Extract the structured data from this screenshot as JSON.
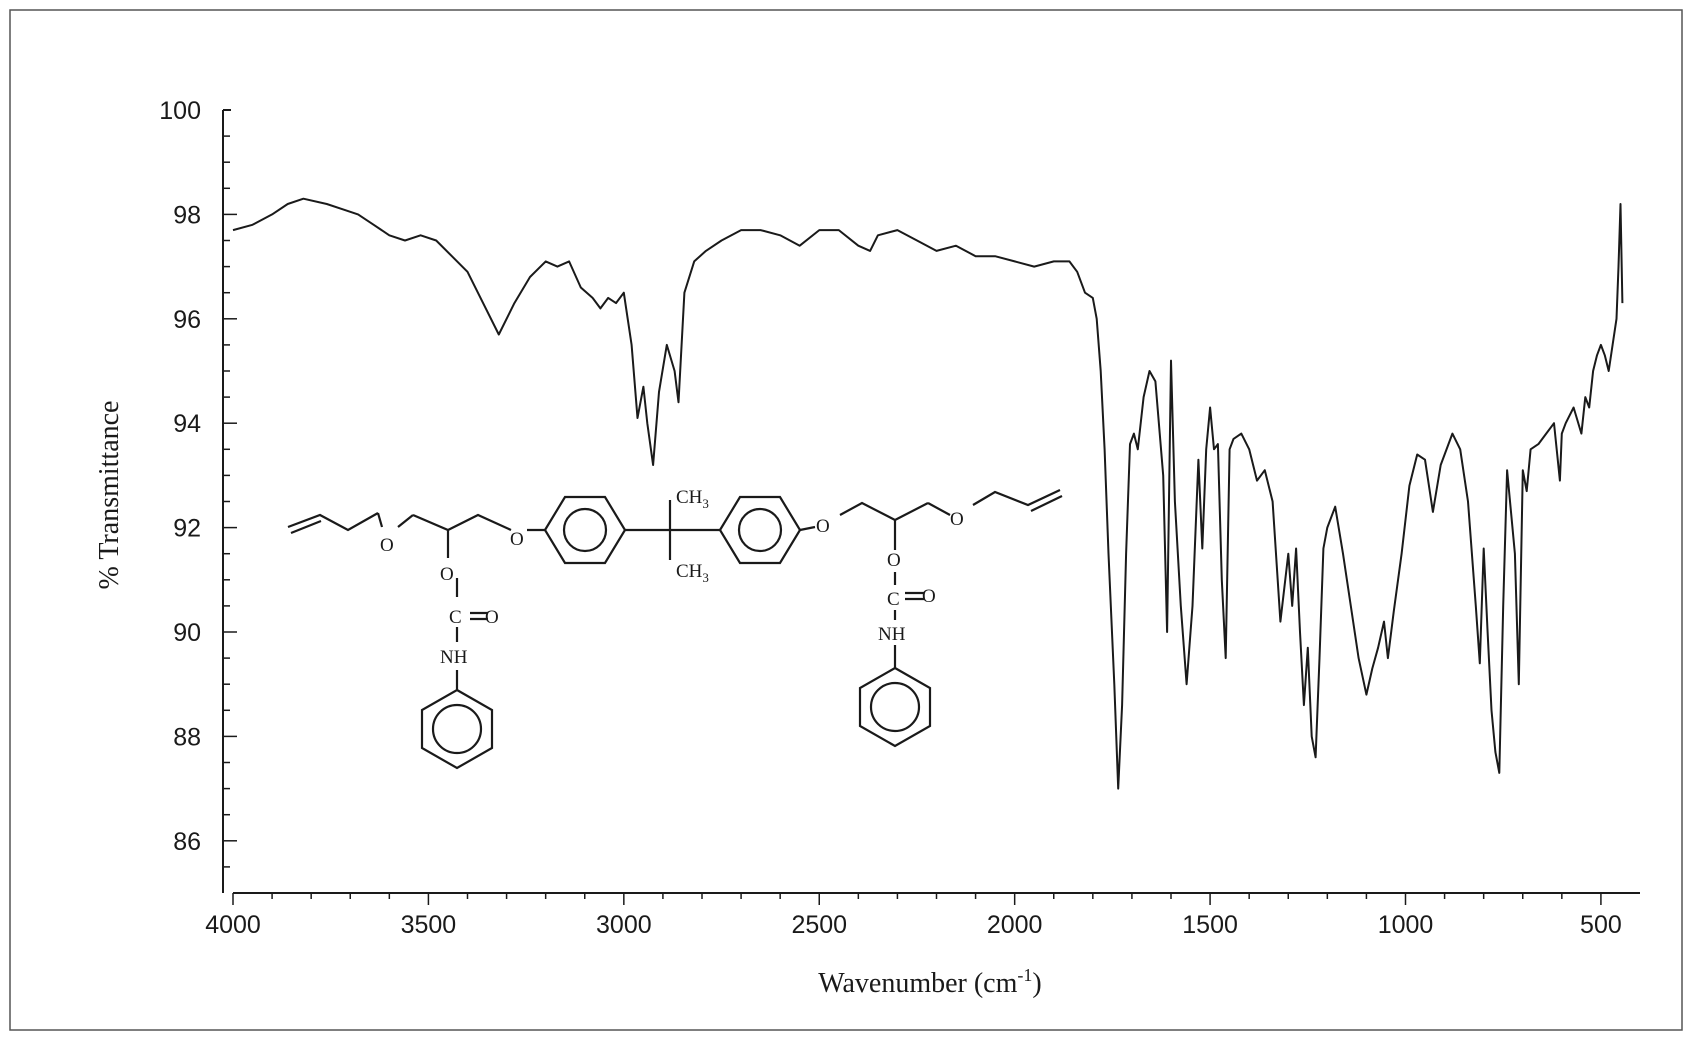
{
  "chart_data": {
    "type": "line",
    "title": "",
    "xlabel": "Wavenumber (cm",
    "xlabel_sup": "-1",
    "xlabel_close": ")",
    "ylabel": "% Transmittance",
    "xlim": [
      4000,
      400
    ],
    "ylim": [
      85,
      100
    ],
    "x_reversed": true,
    "grid": false,
    "legend": "none",
    "x_ticks": [
      4000,
      3500,
      3000,
      2500,
      2000,
      1500,
      1000,
      500
    ],
    "x_tick_labels": [
      "4000",
      "3500",
      "3000",
      "2500",
      "2000",
      "1500",
      "1000",
      "500"
    ],
    "y_ticks": [
      86,
      88,
      90,
      92,
      94,
      96,
      98,
      100
    ],
    "y_tick_labels": [
      "86",
      "88",
      "90",
      "92",
      "94",
      "96",
      "98",
      "100"
    ],
    "series": [
      {
        "color": "#1a1a1a",
        "x": [
          4000,
          3950,
          3900,
          3860,
          3820,
          3760,
          3720,
          3680,
          3640,
          3600,
          3560,
          3520,
          3480,
          3440,
          3400,
          3360,
          3320,
          3280,
          3240,
          3200,
          3170,
          3140,
          3110,
          3080,
          3060,
          3040,
          3020,
          3000,
          2990,
          2980,
          2965,
          2950,
          2940,
          2925,
          2910,
          2890,
          2870,
          2860,
          2845,
          2820,
          2790,
          2750,
          2700,
          2650,
          2600,
          2550,
          2500,
          2450,
          2400,
          2370,
          2350,
          2300,
          2250,
          2200,
          2150,
          2100,
          2050,
          2000,
          1950,
          1900,
          1860,
          1840,
          1820,
          1800,
          1790,
          1780,
          1770,
          1760,
          1745,
          1735,
          1725,
          1715,
          1705,
          1695,
          1685,
          1670,
          1655,
          1640,
          1620,
          1610,
          1600,
          1590,
          1575,
          1560,
          1545,
          1530,
          1520,
          1510,
          1500,
          1490,
          1480,
          1470,
          1460,
          1450,
          1440,
          1420,
          1400,
          1380,
          1360,
          1340,
          1320,
          1300,
          1290,
          1280,
          1270,
          1260,
          1250,
          1240,
          1230,
          1220,
          1210,
          1200,
          1180,
          1160,
          1140,
          1120,
          1100,
          1085,
          1070,
          1055,
          1045,
          1030,
          1010,
          990,
          970,
          950,
          930,
          910,
          880,
          860,
          840,
          820,
          810,
          800,
          790,
          780,
          770,
          760,
          750,
          740,
          720,
          710,
          700,
          690,
          680,
          660,
          640,
          620,
          605,
          600,
          590,
          570,
          550,
          540,
          530,
          520,
          510,
          500,
          490,
          480,
          470,
          460,
          455,
          450,
          445
        ],
        "y": [
          97.7,
          97.8,
          98.0,
          98.2,
          98.3,
          98.2,
          98.1,
          98.0,
          97.8,
          97.6,
          97.5,
          97.6,
          97.5,
          97.2,
          96.9,
          96.3,
          95.7,
          96.3,
          96.8,
          97.1,
          97.0,
          97.1,
          96.6,
          96.4,
          96.2,
          96.4,
          96.3,
          96.5,
          96.0,
          95.5,
          94.1,
          94.7,
          94.0,
          93.2,
          94.6,
          95.5,
          95.0,
          94.4,
          96.5,
          97.1,
          97.3,
          97.5,
          97.7,
          97.7,
          97.6,
          97.4,
          97.7,
          97.7,
          97.4,
          97.3,
          97.6,
          97.7,
          97.5,
          97.3,
          97.4,
          97.2,
          97.2,
          97.1,
          97.0,
          97.1,
          97.1,
          96.9,
          96.5,
          96.4,
          96.0,
          95.0,
          93.5,
          91.5,
          89.0,
          87.0,
          88.6,
          91.5,
          93.6,
          93.8,
          93.5,
          94.5,
          95.0,
          94.8,
          93.0,
          90.0,
          95.2,
          92.5,
          90.5,
          89.0,
          90.5,
          93.3,
          91.6,
          93.5,
          94.3,
          93.5,
          93.6,
          91.0,
          89.5,
          93.5,
          93.7,
          93.8,
          93.5,
          92.9,
          93.1,
          92.5,
          90.2,
          91.5,
          90.5,
          91.6,
          90.0,
          88.6,
          89.7,
          88.0,
          87.6,
          89.5,
          91.6,
          92.0,
          92.4,
          91.5,
          90.5,
          89.5,
          88.8,
          89.3,
          89.7,
          90.2,
          89.5,
          90.4,
          91.5,
          92.8,
          93.4,
          93.3,
          92.3,
          93.2,
          93.8,
          93.5,
          92.5,
          90.5,
          89.4,
          91.6,
          90.0,
          88.5,
          87.7,
          87.3,
          90.5,
          93.1,
          91.5,
          89.0,
          93.1,
          92.7,
          93.5,
          93.6,
          93.8,
          94.0,
          92.9,
          93.8,
          94.0,
          94.3,
          93.8,
          94.5,
          94.3,
          95.0,
          95.3,
          95.5,
          95.3,
          95.0,
          95.5,
          96.0,
          97.0,
          98.2,
          96.3
        ]
      }
    ]
  }
}
